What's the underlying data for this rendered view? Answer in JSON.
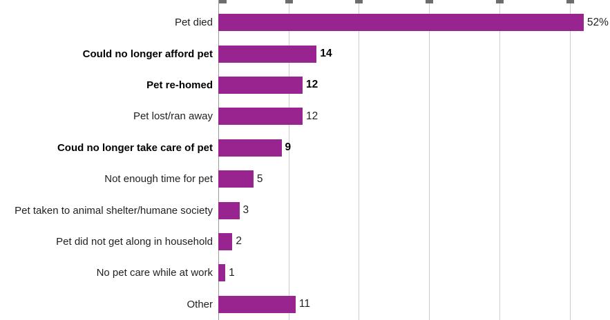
{
  "chart_data": {
    "type": "bar",
    "orientation": "horizontal",
    "title": "",
    "xlabel": "",
    "ylabel": "",
    "categories": [
      "Pet died",
      "Could no longer afford pet",
      "Pet re-homed",
      "Pet lost/ran away",
      "Coud no longer take care of pet",
      "Not enough time for pet",
      "Pet taken to animal shelter/humane society",
      "Pet did not get along in household",
      "No pet care while at work",
      "Other"
    ],
    "values": [
      52,
      14,
      12,
      12,
      9,
      5,
      3,
      2,
      1,
      11
    ],
    "value_labels": [
      "52%",
      "14",
      "12",
      "12",
      "9",
      "5",
      "3",
      "2",
      "1",
      "11"
    ],
    "bold_rows": [
      false,
      true,
      true,
      false,
      true,
      false,
      false,
      false,
      false,
      false
    ],
    "grid_values": [
      0,
      10,
      20,
      30,
      40,
      50
    ],
    "xlim": [
      0,
      55.75
    ],
    "grid_on": true,
    "legend": "none",
    "bar_color": "#98258f",
    "axis_color": "#9a9a9a",
    "gridline_color": "#cccccc"
  }
}
